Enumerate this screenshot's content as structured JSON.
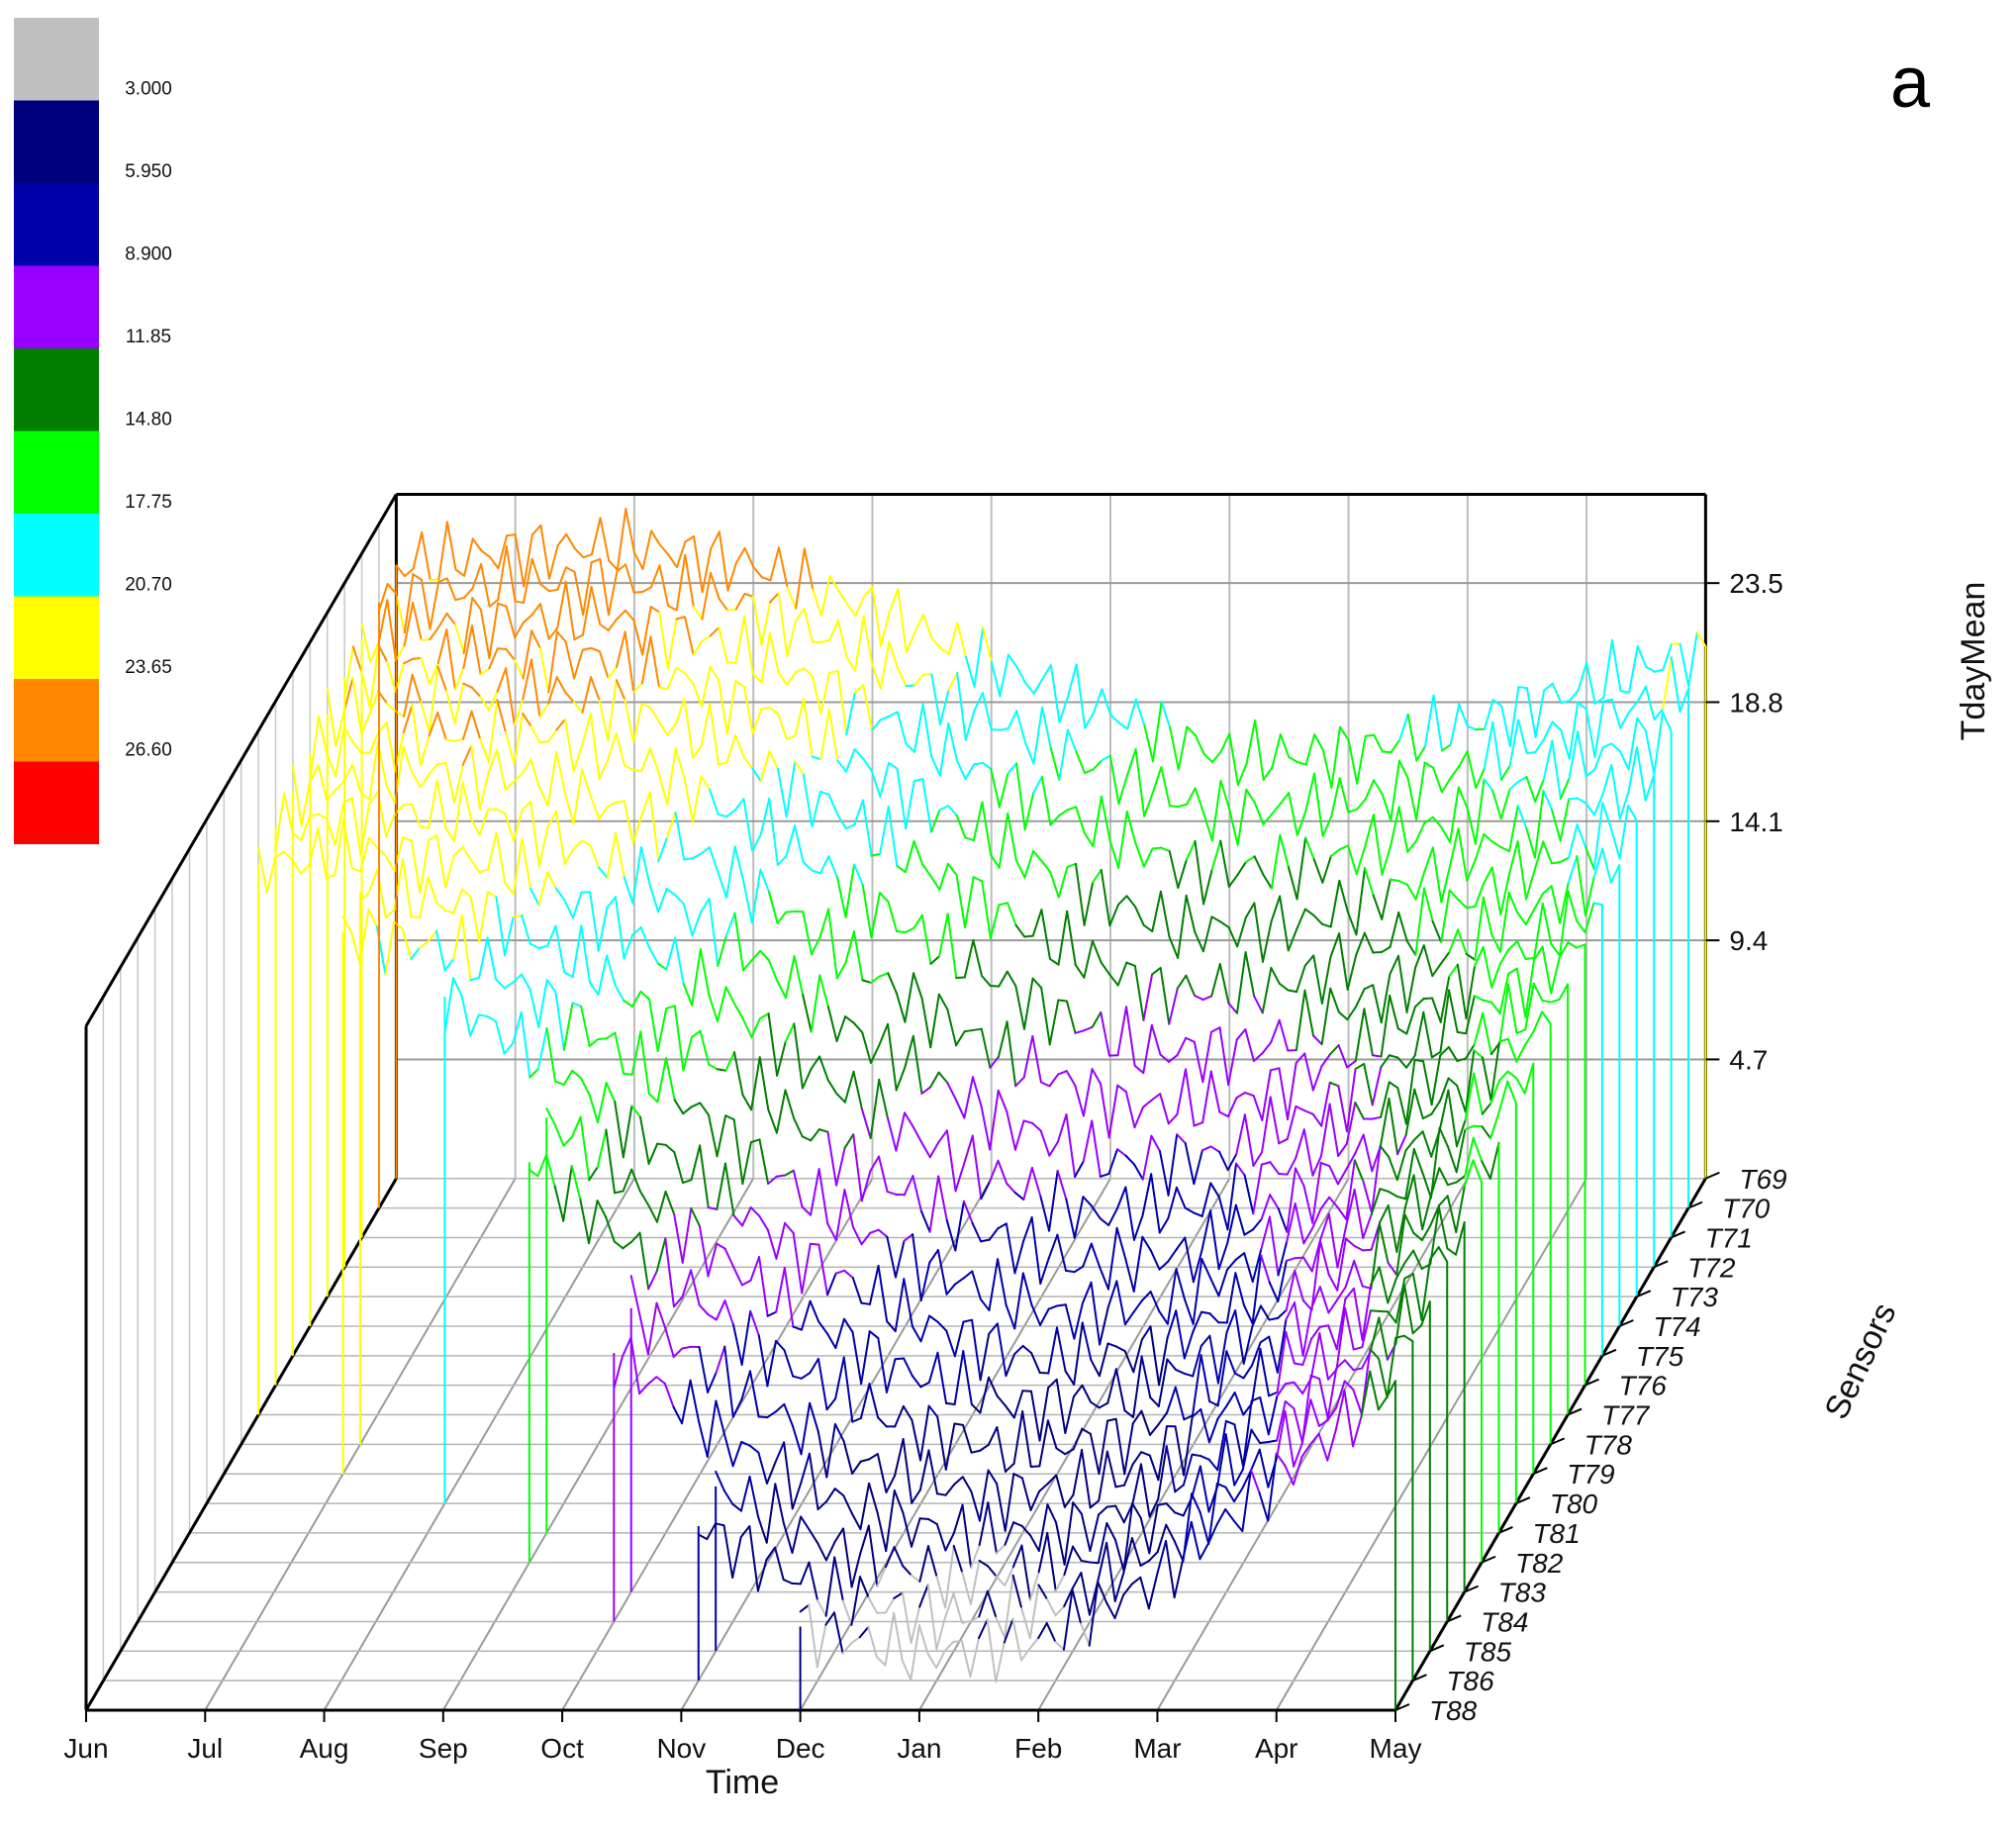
{
  "chart_data": {
    "type": "line",
    "subtype": "3d-waterfall",
    "panel_label": "a",
    "title": "",
    "xlabel": "Time",
    "ylabel": "Sensors",
    "zlabel": "TdayMean",
    "x_ticks": [
      "Jun",
      "Jul",
      "Aug",
      "Sep",
      "Oct",
      "Nov",
      "Dec",
      "Jan",
      "Feb",
      "Mar",
      "Apr",
      "May"
    ],
    "z_ticks": [
      "4.7",
      "9.4",
      "14.1",
      "18.8",
      "23.5"
    ],
    "z_range": [
      0,
      27
    ],
    "grid": true,
    "legend_placement": "top-left",
    "color_scale": {
      "levels": [
        "3.000",
        "5.950",
        "8.900",
        "11.85",
        "14.80",
        "17.75",
        "20.70",
        "23.65",
        "26.60"
      ],
      "colors": [
        "#c0c0c0",
        "#00007f",
        "#0000aa",
        "#9900ff",
        "#007f00",
        "#00ff00",
        "#00ffff",
        "#ffff00",
        "#ff8800",
        "#ff0000"
      ]
    },
    "series": [
      {
        "name": "T69",
        "start_month": 0,
        "x": [
          0,
          1,
          2,
          3,
          4,
          5,
          6,
          7,
          8,
          9,
          10,
          11
        ],
        "values": [
          24.2,
          24.8,
          25.0,
          24.2,
          22.5,
          20.3,
          18.4,
          16.6,
          16.8,
          17.9,
          19.4,
          21.0
        ]
      },
      {
        "name": "T70",
        "start_month": 0,
        "x": [
          0,
          1,
          2,
          3,
          4,
          5,
          6,
          7,
          8,
          9,
          10,
          11
        ],
        "values": [
          23.9,
          24.6,
          24.8,
          23.9,
          22.1,
          19.6,
          17.5,
          15.6,
          15.8,
          17.1,
          18.9,
          20.5
        ]
      },
      {
        "name": "T71",
        "start_month": 0,
        "x": [
          0,
          1,
          2,
          3,
          4,
          5,
          6,
          7,
          8,
          9,
          10,
          11
        ],
        "values": [
          23.6,
          24.3,
          24.5,
          23.5,
          21.5,
          18.9,
          16.5,
          14.5,
          14.7,
          16.2,
          18.3,
          20.0
        ]
      },
      {
        "name": "T72",
        "start_month": 0,
        "x": [
          0,
          1,
          2,
          3,
          4,
          5,
          6,
          7,
          8,
          9,
          10,
          11
        ],
        "values": [
          23.3,
          24.0,
          24.2,
          23.0,
          20.8,
          18.0,
          15.4,
          13.3,
          13.5,
          15.2,
          17.5,
          19.4
        ]
      },
      {
        "name": "T73",
        "start_month": 0,
        "x": [
          0,
          1,
          2,
          3,
          4,
          5,
          6,
          7,
          8,
          9,
          10,
          11
        ],
        "values": [
          23.0,
          23.7,
          23.8,
          22.5,
          20.0,
          17.0,
          14.2,
          12.0,
          12.2,
          14.2,
          16.7,
          18.8
        ]
      },
      {
        "name": "T74",
        "start_month": 0,
        "x": [
          0,
          1,
          2,
          3,
          4,
          5,
          6,
          7,
          8,
          9,
          10,
          11
        ],
        "values": [
          22.6,
          23.4,
          23.4,
          21.8,
          19.0,
          15.8,
          13.0,
          10.8,
          11.0,
          13.2,
          15.9,
          18.2
        ]
      },
      {
        "name": "T75",
        "start_month": 0,
        "x": [
          0,
          1,
          2,
          3,
          4,
          5,
          6,
          7,
          8,
          9,
          10,
          11
        ],
        "values": [
          22.3,
          23.0,
          22.9,
          21.0,
          18.0,
          14.6,
          11.8,
          9.8,
          10.0,
          12.3,
          15.2,
          17.8
        ]
      },
      {
        "name": "T76",
        "start_month": 0,
        "x": [
          0,
          1,
          2,
          3,
          4,
          5,
          6,
          7,
          8,
          9,
          10,
          11
        ],
        "values": [
          22.0,
          22.6,
          22.4,
          20.2,
          17.0,
          13.5,
          10.7,
          8.8,
          9.1,
          11.5,
          14.6,
          17.4
        ]
      },
      {
        "name": "T77",
        "start_month": 0,
        "x": [
          0,
          1,
          2,
          3,
          4,
          5,
          6,
          7,
          8,
          9,
          10,
          11
        ],
        "values": [
          21.7,
          22.2,
          21.8,
          19.4,
          16.0,
          12.5,
          9.7,
          7.9,
          8.3,
          10.8,
          14.0,
          17.0
        ]
      },
      {
        "name": "T78",
        "start_month": 1,
        "x": [
          1,
          2,
          3,
          4,
          5,
          6,
          7,
          8,
          9,
          10,
          11
        ],
        "values": [
          21.8,
          21.2,
          18.6,
          15.1,
          11.5,
          8.8,
          7.1,
          7.5,
          10.1,
          13.4,
          16.6
        ]
      },
      {
        "name": "T79",
        "start_month": 1,
        "x": [
          1,
          2,
          3,
          4,
          5,
          6,
          7,
          8,
          9,
          10,
          11
        ],
        "values": [
          21.4,
          20.6,
          17.8,
          14.2,
          10.6,
          7.9,
          6.3,
          6.8,
          9.5,
          12.9,
          16.2
        ]
      },
      {
        "name": "T80",
        "start_month": 2,
        "x": [
          2,
          3,
          4,
          5,
          6,
          7,
          8,
          9,
          10,
          11
        ],
        "values": [
          20.0,
          17.0,
          13.3,
          9.8,
          7.1,
          5.6,
          6.1,
          8.9,
          12.4,
          15.8
        ]
      },
      {
        "name": "T81",
        "start_month": 3,
        "x": [
          3,
          4,
          5,
          6,
          7,
          8,
          9,
          10,
          11
        ],
        "values": [
          16.4,
          12.6,
          9.0,
          6.4,
          5.0,
          5.5,
          8.3,
          11.9,
          15.4
        ]
      },
      {
        "name": "T82",
        "start_month": 3,
        "x": [
          3,
          4,
          5,
          6,
          7,
          8,
          9,
          10,
          11
        ],
        "values": [
          15.8,
          11.9,
          8.3,
          5.7,
          4.4,
          4.9,
          7.7,
          11.4,
          15.0
        ]
      },
      {
        "name": "T83",
        "start_month": 4,
        "x": [
          4,
          5,
          6,
          7,
          8,
          9,
          10,
          11
        ],
        "values": [
          11.2,
          7.6,
          5.0,
          3.8,
          4.3,
          7.1,
          10.9,
          14.6
        ]
      },
      {
        "name": "T84",
        "start_month": 4,
        "x": [
          4,
          5,
          6,
          7,
          8,
          9,
          10,
          11
        ],
        "values": [
          10.6,
          7.0,
          4.5,
          3.3,
          3.8,
          6.5,
          10.4,
          14.2
        ]
      },
      {
        "name": "T85",
        "start_month": 5,
        "x": [
          5,
          6,
          7,
          8,
          9,
          10,
          11
        ],
        "values": [
          6.5,
          4.0,
          2.9,
          3.4,
          6.0,
          9.9,
          13.8
        ]
      },
      {
        "name": "T86",
        "start_month": 5,
        "x": [
          5,
          6,
          7,
          8,
          9,
          10,
          11
        ],
        "values": [
          6.1,
          3.6,
          2.5,
          3.0,
          5.6,
          9.5,
          13.4
        ]
      },
      {
        "name": "T88",
        "start_month": 6,
        "x": [
          6,
          7,
          8,
          9,
          10,
          11
        ],
        "values": [
          3.3,
          2.2,
          2.7,
          5.2,
          9.1,
          13.0
        ]
      }
    ]
  }
}
